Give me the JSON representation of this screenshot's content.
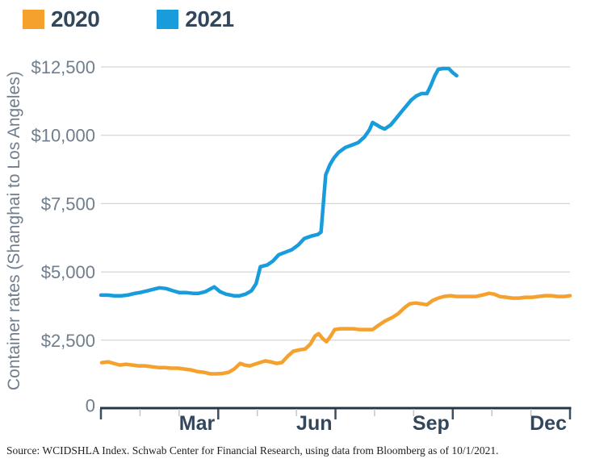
{
  "legend": {
    "items": [
      {
        "label": "2020",
        "color": "#F5A12E"
      },
      {
        "label": "2021",
        "color": "#189CDB"
      }
    ]
  },
  "y_axis": {
    "title": "Container rates (Shanghai to Los Angeles)",
    "ticks": [
      {
        "label": "$12,500",
        "value": 12500
      },
      {
        "label": "$10,000",
        "value": 10000
      },
      {
        "label": "$7,500",
        "value": 7500
      },
      {
        "label": "$5,000",
        "value": 5000
      },
      {
        "label": "$2,500",
        "value": 2500
      },
      {
        "label": "0",
        "value": 0
      }
    ]
  },
  "x_axis": {
    "ticks": [
      {
        "m": 0
      },
      {
        "m": 1
      },
      {
        "m": 2
      },
      {
        "m": 3,
        "label": "Mar"
      },
      {
        "m": 4
      },
      {
        "m": 5
      },
      {
        "m": 6,
        "label": "Jun"
      },
      {
        "m": 7
      },
      {
        "m": 8
      },
      {
        "m": 9,
        "label": "Sep"
      },
      {
        "m": 10
      },
      {
        "m": 11
      },
      {
        "m": 12,
        "label": "Dec"
      }
    ]
  },
  "colors": {
    "background": "#FFFFFF",
    "grid": "#CBCBCB",
    "axis": "#24374A",
    "axis_tick_major": "#3D4E5E",
    "axis_tick_minor": "#C6C6C6",
    "axis_label_muted": "#6F7D8C",
    "axis_label_strong": "#33475B"
  },
  "source": "Source: WCIDSHLA Index. Schwab Center for Financial Research, using data from Bloomberg as of 10/1/2021.",
  "chart_data": {
    "type": "line",
    "title": "",
    "xlabel": "",
    "ylabel": "Container rates (Shanghai to Los Angeles)",
    "ylim": [
      0,
      12500
    ],
    "xlim_months": [
      0,
      12
    ],
    "x_unit": "months since Jan 1 (0 = Jan, 3 = end of Mar, 12 = end of Dec)",
    "x_tick_labels": [
      "Mar",
      "Jun",
      "Sep",
      "Dec"
    ],
    "grid": "horizontal",
    "legend_position": "top-left",
    "series": [
      {
        "name": "2020",
        "color": "#F5A12E",
        "points": [
          [
            0.02,
            1680
          ],
          [
            0.19,
            1710
          ],
          [
            0.33,
            1650
          ],
          [
            0.48,
            1590
          ],
          [
            0.64,
            1620
          ],
          [
            0.81,
            1590
          ],
          [
            0.97,
            1560
          ],
          [
            1.14,
            1560
          ],
          [
            1.3,
            1530
          ],
          [
            1.47,
            1500
          ],
          [
            1.63,
            1500
          ],
          [
            1.8,
            1475
          ],
          [
            1.97,
            1475
          ],
          [
            2.13,
            1445
          ],
          [
            2.3,
            1415
          ],
          [
            2.46,
            1355
          ],
          [
            2.63,
            1325
          ],
          [
            2.8,
            1270
          ],
          [
            2.96,
            1270
          ],
          [
            3.12,
            1285
          ],
          [
            3.27,
            1325
          ],
          [
            3.41,
            1445
          ],
          [
            3.56,
            1650
          ],
          [
            3.68,
            1590
          ],
          [
            3.81,
            1560
          ],
          [
            3.93,
            1620
          ],
          [
            4.06,
            1680
          ],
          [
            4.2,
            1740
          ],
          [
            4.34,
            1710
          ],
          [
            4.49,
            1650
          ],
          [
            4.63,
            1685
          ],
          [
            4.78,
            1915
          ],
          [
            4.92,
            2095
          ],
          [
            5.09,
            2150
          ],
          [
            5.23,
            2180
          ],
          [
            5.36,
            2360
          ],
          [
            5.48,
            2655
          ],
          [
            5.57,
            2740
          ],
          [
            5.67,
            2565
          ],
          [
            5.77,
            2445
          ],
          [
            5.88,
            2655
          ],
          [
            5.98,
            2890
          ],
          [
            6.12,
            2920
          ],
          [
            6.29,
            2920
          ],
          [
            6.46,
            2920
          ],
          [
            6.62,
            2890
          ],
          [
            6.79,
            2890
          ],
          [
            6.95,
            2890
          ],
          [
            7.12,
            3065
          ],
          [
            7.28,
            3215
          ],
          [
            7.45,
            3330
          ],
          [
            7.61,
            3480
          ],
          [
            7.76,
            3685
          ],
          [
            7.9,
            3830
          ],
          [
            8.05,
            3860
          ],
          [
            8.2,
            3830
          ],
          [
            8.34,
            3800
          ],
          [
            8.48,
            3950
          ],
          [
            8.63,
            4040
          ],
          [
            8.77,
            4100
          ],
          [
            8.94,
            4130
          ],
          [
            9.1,
            4100
          ],
          [
            9.27,
            4100
          ],
          [
            9.43,
            4100
          ],
          [
            9.6,
            4100
          ],
          [
            9.77,
            4155
          ],
          [
            9.93,
            4215
          ],
          [
            10.06,
            4185
          ],
          [
            10.2,
            4100
          ],
          [
            10.37,
            4070
          ],
          [
            10.53,
            4040
          ],
          [
            10.7,
            4040
          ],
          [
            10.86,
            4070
          ],
          [
            11.03,
            4070
          ],
          [
            11.19,
            4100
          ],
          [
            11.36,
            4130
          ],
          [
            11.52,
            4130
          ],
          [
            11.69,
            4100
          ],
          [
            11.85,
            4100
          ],
          [
            12.0,
            4130
          ]
        ]
      },
      {
        "name": "2021",
        "color": "#189CDB",
        "points": [
          [
            0.0,
            4150
          ],
          [
            0.17,
            4150
          ],
          [
            0.35,
            4125
          ],
          [
            0.52,
            4125
          ],
          [
            0.68,
            4150
          ],
          [
            0.85,
            4210
          ],
          [
            1.0,
            4245
          ],
          [
            1.17,
            4300
          ],
          [
            1.35,
            4365
          ],
          [
            1.5,
            4420
          ],
          [
            1.67,
            4390
          ],
          [
            1.85,
            4305
          ],
          [
            2.0,
            4245
          ],
          [
            2.17,
            4245
          ],
          [
            2.35,
            4215
          ],
          [
            2.5,
            4215
          ],
          [
            2.67,
            4275
          ],
          [
            2.9,
            4450
          ],
          [
            3.05,
            4275
          ],
          [
            3.2,
            4185
          ],
          [
            3.4,
            4125
          ],
          [
            3.55,
            4125
          ],
          [
            3.7,
            4185
          ],
          [
            3.85,
            4305
          ],
          [
            3.97,
            4570
          ],
          [
            4.08,
            5190
          ],
          [
            4.25,
            5250
          ],
          [
            4.4,
            5395
          ],
          [
            4.55,
            5630
          ],
          [
            4.72,
            5720
          ],
          [
            4.88,
            5810
          ],
          [
            5.05,
            5985
          ],
          [
            5.2,
            6220
          ],
          [
            5.38,
            6310
          ],
          [
            5.55,
            6370
          ],
          [
            5.63,
            6455
          ],
          [
            5.75,
            8550
          ],
          [
            5.86,
            8930
          ],
          [
            5.96,
            9170
          ],
          [
            6.08,
            9375
          ],
          [
            6.25,
            9550
          ],
          [
            6.42,
            9640
          ],
          [
            6.58,
            9730
          ],
          [
            6.74,
            9935
          ],
          [
            6.87,
            10200
          ],
          [
            6.95,
            10465
          ],
          [
            7.06,
            10375
          ],
          [
            7.16,
            10290
          ],
          [
            7.26,
            10230
          ],
          [
            7.41,
            10375
          ],
          [
            7.55,
            10610
          ],
          [
            7.7,
            10880
          ],
          [
            7.82,
            11085
          ],
          [
            7.94,
            11290
          ],
          [
            8.07,
            11440
          ],
          [
            8.2,
            11525
          ],
          [
            8.34,
            11525
          ],
          [
            8.44,
            11820
          ],
          [
            8.54,
            12175
          ],
          [
            8.63,
            12410
          ],
          [
            8.75,
            12440
          ],
          [
            8.9,
            12440
          ],
          [
            9.0,
            12290
          ],
          [
            9.1,
            12180
          ]
        ]
      }
    ]
  }
}
